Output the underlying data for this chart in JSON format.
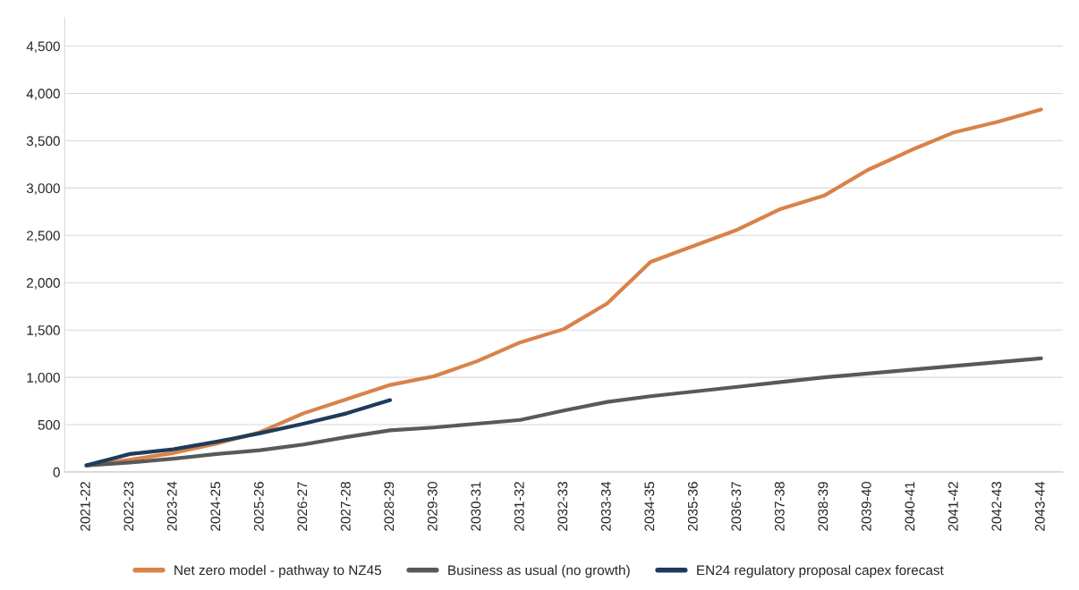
{
  "chart_data": {
    "type": "line",
    "categories": [
      "2021-22",
      "2022-23",
      "2023-24",
      "2024-25",
      "2025-26",
      "2026-27",
      "2027-28",
      "2028-29",
      "2029-30",
      "2030-31",
      "2031-32",
      "2032-33",
      "2033-34",
      "2034-35",
      "2035-36",
      "2036-37",
      "2037-38",
      "2038-39",
      "2039-40",
      "2040-41",
      "2041-42",
      "2042-43",
      "2043-44"
    ],
    "series": [
      {
        "name": "Net zero model - pathway to NZ45",
        "color": "#d9824a",
        "values": [
          70,
          130,
          200,
          300,
          420,
          620,
          770,
          920,
          1010,
          1170,
          1370,
          1510,
          1780,
          2220,
          2390,
          2560,
          2780,
          2920,
          3190,
          3400,
          3590,
          3700,
          3830
        ]
      },
      {
        "name": "Business as usual (no growth)",
        "color": "#595959",
        "values": [
          70,
          100,
          140,
          190,
          230,
          290,
          370,
          440,
          470,
          510,
          550,
          650,
          740,
          800,
          850,
          900,
          950,
          1000,
          1040,
          1080,
          1120,
          1160,
          1200
        ]
      },
      {
        "name": "EN24 regulatory proposal capex forecast",
        "color": "#1f3b5c",
        "values": [
          70,
          190,
          240,
          320,
          410,
          510,
          620,
          760,
          null,
          null,
          null,
          null,
          null,
          null,
          null,
          null,
          null,
          null,
          null,
          null,
          null,
          null,
          null
        ]
      }
    ],
    "ylim": [
      0,
      4800
    ],
    "yticks": [
      {
        "value": 0,
        "label": "0"
      },
      {
        "value": 500,
        "label": "500"
      },
      {
        "value": 1000,
        "label": "1,000"
      },
      {
        "value": 1500,
        "label": "1,500"
      },
      {
        "value": 2000,
        "label": "2,000"
      },
      {
        "value": 2500,
        "label": "2,500"
      },
      {
        "value": 3000,
        "label": "3,000"
      },
      {
        "value": 3500,
        "label": "3,500"
      },
      {
        "value": 4000,
        "label": "4,000"
      },
      {
        "value": 4500,
        "label": "4,500"
      }
    ],
    "grid": "y",
    "legend": "bottom",
    "marker": "none",
    "line_style": "solid"
  }
}
